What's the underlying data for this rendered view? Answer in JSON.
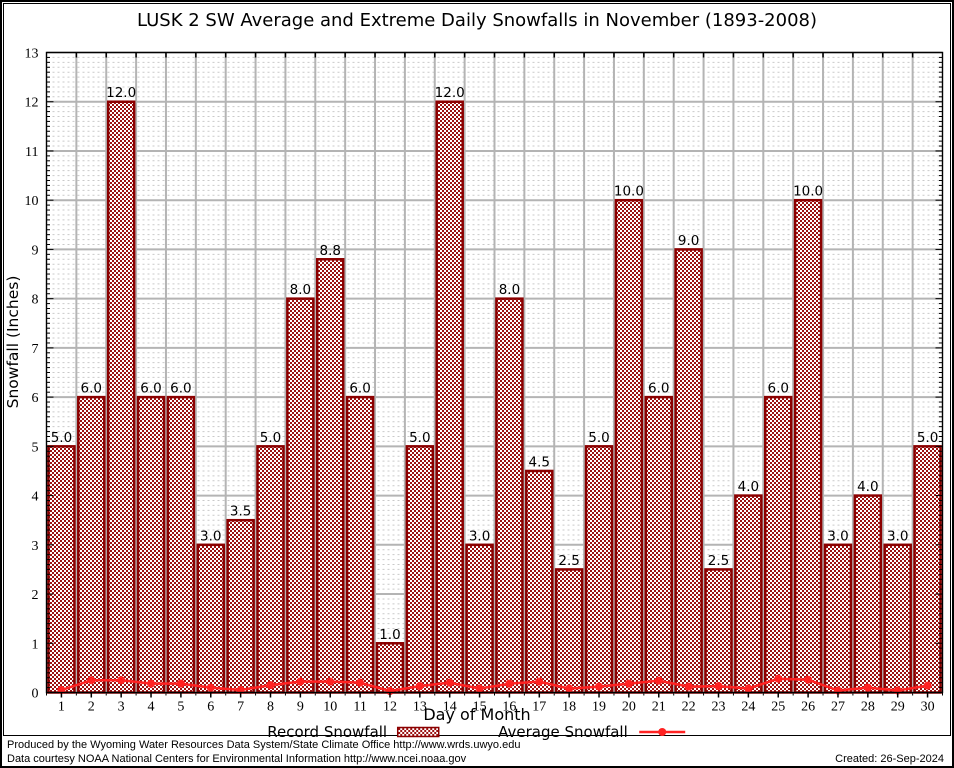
{
  "chart_data": {
    "type": "bar",
    "title": "LUSK 2 SW Average and Extreme Daily Snowfalls in November (1893-2008)",
    "xlabel": "Day of Month",
    "ylabel": "Snowfall (Inches)",
    "ylim": [
      0,
      13
    ],
    "y_major_step": 1,
    "y_minor_step": 0.1,
    "grid": true,
    "legend_position": "bottom",
    "categories": [
      1,
      2,
      3,
      4,
      5,
      6,
      7,
      8,
      9,
      10,
      11,
      12,
      13,
      14,
      15,
      16,
      17,
      18,
      19,
      20,
      21,
      22,
      23,
      24,
      25,
      26,
      27,
      28,
      29,
      30
    ],
    "series": [
      {
        "name": "Record Snowfall",
        "type": "bar",
        "color": "#8b0000",
        "values": [
          5.0,
          6.0,
          12.0,
          6.0,
          6.0,
          3.0,
          3.5,
          5.0,
          8.0,
          8.8,
          6.0,
          1.0,
          5.0,
          12.0,
          3.0,
          8.0,
          4.5,
          2.5,
          5.0,
          10.0,
          6.0,
          9.0,
          2.5,
          4.0,
          6.0,
          10.0,
          3.0,
          4.0,
          3.0,
          5.0
        ],
        "bar_labels": [
          "5.0",
          "6.0",
          "12.0",
          "6.0",
          "6.0",
          "3.0",
          "3.5",
          "5.0",
          "8.0",
          "8.8",
          "6.0",
          "1.0",
          "5.0",
          "12.0",
          "3.0",
          "8.0",
          "4.5",
          "2.5",
          "5.0",
          "10.0",
          "6.0",
          "9.0",
          "2.5",
          "4.0",
          "6.0",
          "10.0",
          "3.0",
          "4.0",
          "3.0",
          "5.0"
        ]
      },
      {
        "name": "Average Snowfall",
        "type": "line",
        "color": "#ff2222",
        "marker": "circle",
        "values": [
          0.05,
          0.25,
          0.25,
          0.18,
          0.18,
          0.1,
          0.05,
          0.15,
          0.22,
          0.22,
          0.2,
          0.03,
          0.13,
          0.2,
          0.08,
          0.18,
          0.22,
          0.08,
          0.12,
          0.18,
          0.24,
          0.12,
          0.13,
          0.08,
          0.28,
          0.26,
          0.04,
          0.1,
          0.04,
          0.14
        ]
      }
    ]
  },
  "colors": {
    "background": "#ffffff",
    "bar_border": "#8b0000",
    "bar_pattern": "#9b1212",
    "average_line": "#ff2222",
    "grid_major": "#b4b4b4",
    "grid_minor": "#c9c9c9",
    "axis": "#000000",
    "label_text": "#000000"
  },
  "footer": {
    "line1": "Produced by the Wyoming Water Resources Data System/State Climate Office http://www.wrds.uwyo.edu",
    "line2": "Data courtesy NOAA National Centers for Environmental Information http://www.ncei.noaa.gov",
    "created": "Created: 26-Sep-2024"
  }
}
